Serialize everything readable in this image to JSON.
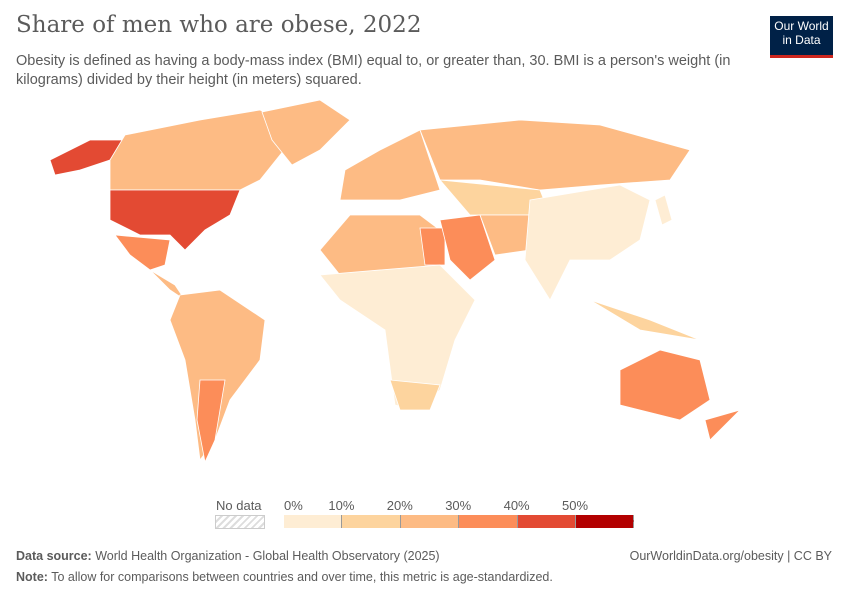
{
  "header": {
    "title": "Share of men who are obese, 2022",
    "subtitle": "Obesity is defined as having a body-mass index (BMI) equal to, or greater than, 30. BMI is a person's weight (in kilograms) divided by their height (in meters) squared.",
    "logo_line1": "Our World",
    "logo_line2": "in Data"
  },
  "legend": {
    "no_data_label": "No data",
    "ticks": [
      "0%",
      "10%",
      "20%",
      "30%",
      "40%",
      "50%"
    ],
    "bins": [
      {
        "range": "0-10%",
        "color": "#feedd4"
      },
      {
        "range": "10-20%",
        "color": "#fdd49e"
      },
      {
        "range": "20-30%",
        "color": "#fdbb84"
      },
      {
        "range": "30-40%",
        "color": "#fc8d59"
      },
      {
        "range": "40-50%",
        "color": "#e34a33"
      },
      {
        "range": ">50%",
        "color": "#b30000"
      }
    ]
  },
  "map_regions": [
    {
      "name": "alaska",
      "bin": 4
    },
    {
      "name": "canada",
      "bin": 2
    },
    {
      "name": "greenland",
      "bin": 2
    },
    {
      "name": "united-states",
      "bin": 4
    },
    {
      "name": "mexico",
      "bin": 3
    },
    {
      "name": "central-america",
      "bin": 2
    },
    {
      "name": "south-america",
      "bin": 2
    },
    {
      "name": "argentina-chile",
      "bin": 3
    },
    {
      "name": "north-africa",
      "bin": 2
    },
    {
      "name": "egypt",
      "bin": 3
    },
    {
      "name": "sub-saharan-africa",
      "bin": 0
    },
    {
      "name": "southern-africa",
      "bin": 1
    },
    {
      "name": "europe",
      "bin": 2
    },
    {
      "name": "russia",
      "bin": 2
    },
    {
      "name": "central-asia",
      "bin": 1
    },
    {
      "name": "middle-east",
      "bin": 3
    },
    {
      "name": "iran-afghanistan-pakistan",
      "bin": 2
    },
    {
      "name": "south-east-asia-china-india",
      "bin": 0
    },
    {
      "name": "maritime-southeast-asia",
      "bin": 1
    },
    {
      "name": "japan",
      "bin": 0
    },
    {
      "name": "australia",
      "bin": 3
    },
    {
      "name": "new-zealand",
      "bin": 3
    }
  ],
  "footer": {
    "source_label": "Data source:",
    "source_text": "World Health Organization - Global Health Observatory (2025)",
    "url": "OurWorldinData.org/obesity | CC BY",
    "note_label": "Note:",
    "note_text": "To allow for comparisons between countries and over time, this metric is age-standardized."
  }
}
